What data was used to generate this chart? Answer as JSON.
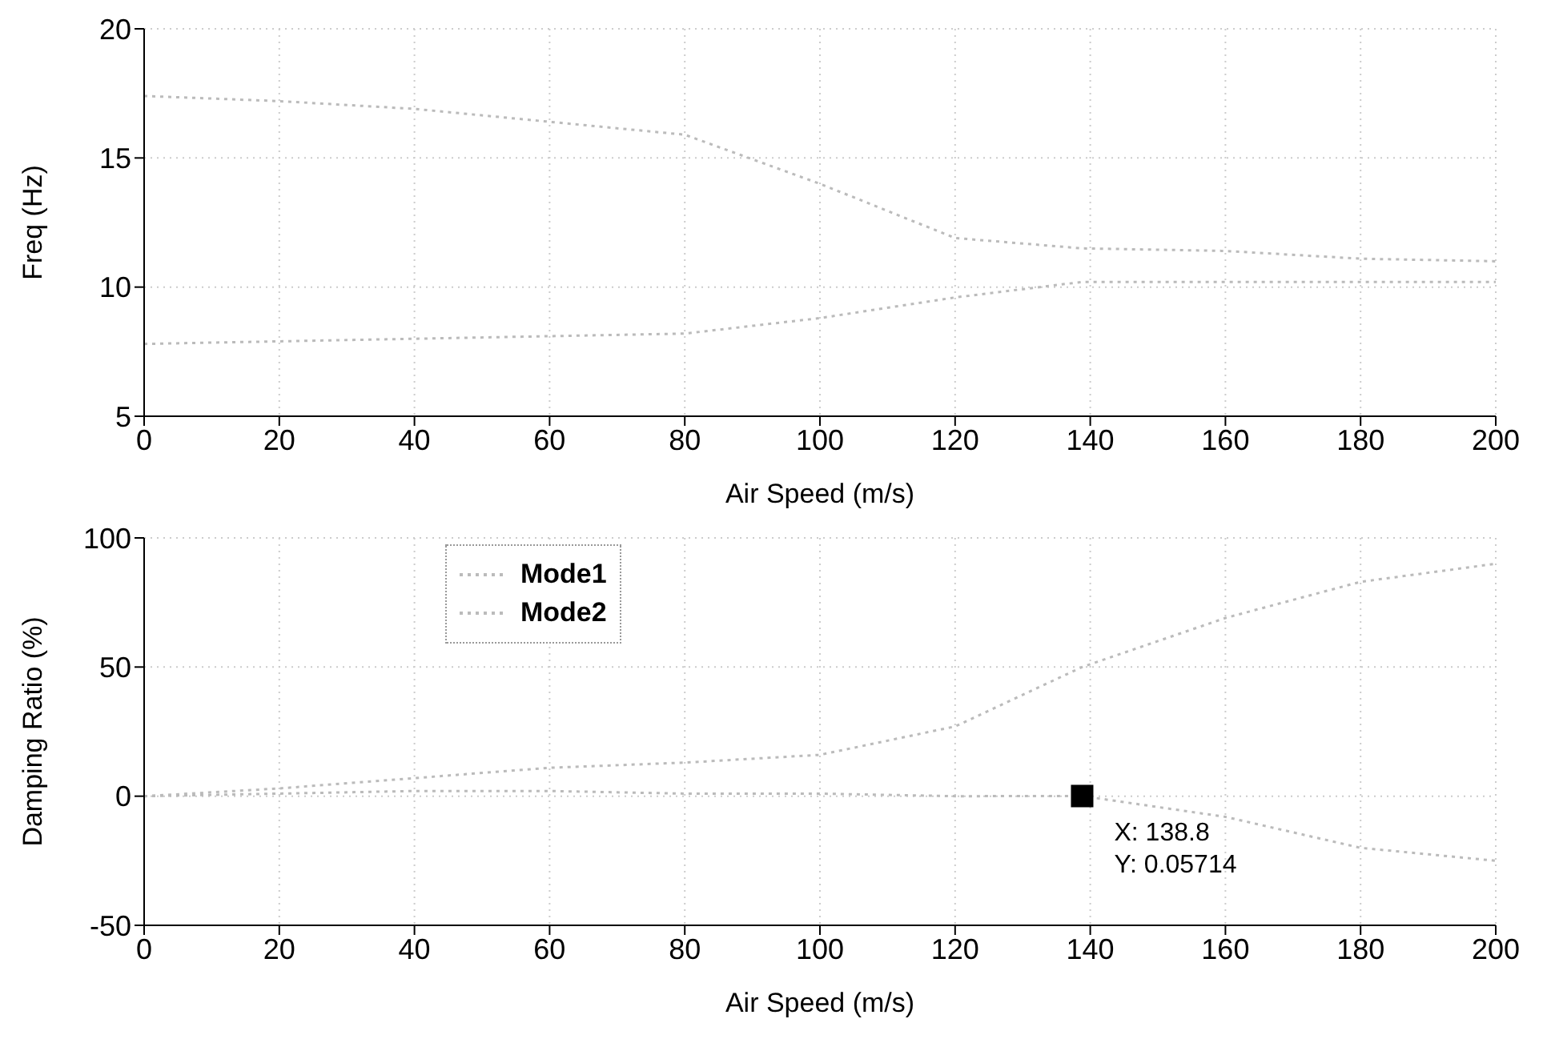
{
  "chart_data": [
    {
      "type": "line",
      "xlabel": "Air Speed (m/s)",
      "ylabel": "Freq (Hz)",
      "x": [
        0,
        20,
        40,
        60,
        80,
        100,
        120,
        138.8,
        160,
        180,
        200
      ],
      "series": [
        {
          "color": "#bbbbbb",
          "values": [
            7.8,
            7.9,
            8.0,
            8.1,
            8.2,
            8.8,
            9.6,
            10.2,
            10.2,
            10.2,
            10.2
          ]
        },
        {
          "color": "#bbbbbb",
          "values": [
            17.4,
            17.2,
            16.9,
            16.4,
            15.9,
            14.0,
            11.9,
            11.5,
            11.4,
            11.1,
            11.0
          ]
        }
      ],
      "xlim": [
        0,
        200
      ],
      "xticks": [
        0,
        20,
        40,
        60,
        80,
        100,
        120,
        140,
        160,
        180,
        200
      ],
      "ylim": [
        5,
        20
      ],
      "yticks": [
        5,
        10,
        15,
        20
      ],
      "grid": true,
      "line_style": "dotted"
    },
    {
      "type": "line",
      "xlabel": "Air Speed (m/s)",
      "ylabel": "Damping Ratio (%)",
      "x": [
        0,
        20,
        40,
        60,
        80,
        100,
        120,
        138.8,
        160,
        180,
        200
      ],
      "series": [
        {
          "name": "Mode1",
          "color": "#bbbbbb",
          "values": [
            0,
            1,
            2,
            2,
            1,
            1,
            0,
            0.05714,
            -8,
            -20,
            -25
          ]
        },
        {
          "name": "Mode2",
          "color": "#bbbbbb",
          "values": [
            0,
            3,
            7,
            11,
            13,
            16,
            27,
            50,
            69,
            83,
            90
          ]
        }
      ],
      "xlim": [
        0,
        200
      ],
      "xticks": [
        0,
        20,
        40,
        60,
        80,
        100,
        120,
        140,
        160,
        180,
        200
      ],
      "ylim": [
        -50,
        100
      ],
      "yticks": [
        -50,
        0,
        50,
        100
      ],
      "grid": true,
      "line_style": "dotted",
      "legend": "top",
      "annotations": [
        {
          "text": "X: 138.8\nY: 0.05714",
          "x": 138.8,
          "y": 0.05714
        }
      ]
    }
  ]
}
